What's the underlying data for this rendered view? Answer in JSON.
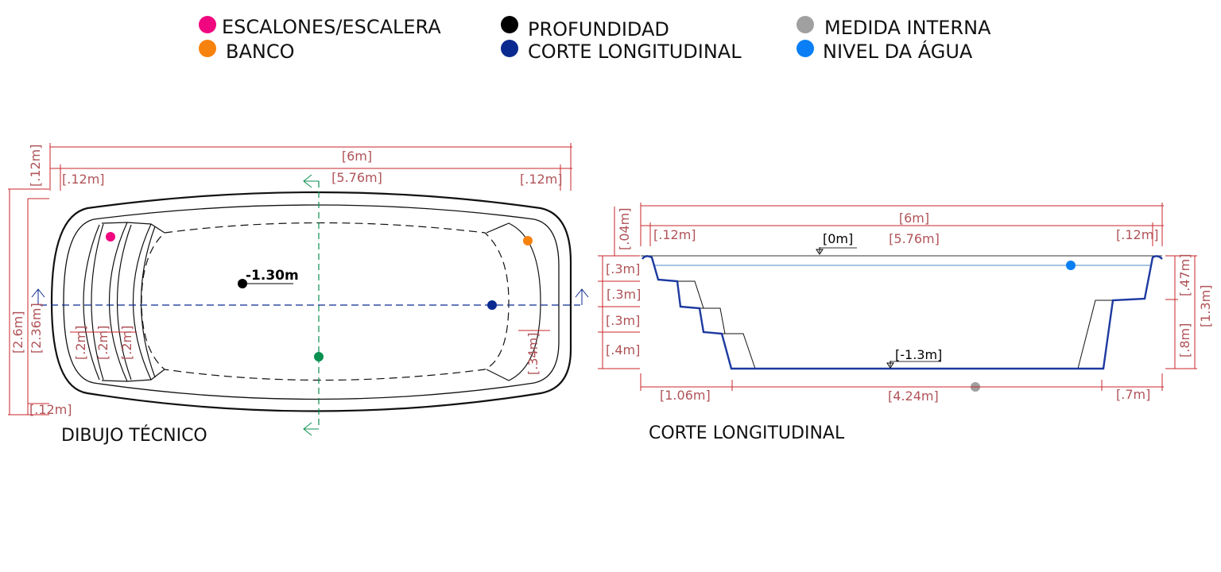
{
  "legend": {
    "items": [
      {
        "label": "ESCALONES/ESCALERA",
        "color": "#f0077f"
      },
      {
        "label": "BANCO",
        "color": "#f7820e"
      },
      {
        "label": "PROFUNDIDAD",
        "color": "#000000"
      },
      {
        "label": "CORTE LONGITUDINAL",
        "color": "#0a2a8f"
      },
      {
        "label": "MEDIDA INTERNA",
        "color": "#a0a0a0"
      },
      {
        "label": "NIVEL DA ÁGUA",
        "color": "#0a7ff5"
      }
    ]
  },
  "plan": {
    "caption": "DIBUJO TÉCNICO",
    "total_length": "[6m]",
    "inner_length": "[5.76m]",
    "wall_left": "[.12m]",
    "wall_right": "[.12m]",
    "wall_top": "[.12m]",
    "wall_bottom": "[.12m]",
    "total_width": "[2.6m]",
    "inner_width": "[2.36m]",
    "step_depths": [
      "[.2m]",
      "[.2m]",
      "[.2m]"
    ],
    "bench_width": "[.34m]",
    "depth": "-1.30m"
  },
  "section": {
    "caption": "CORTE LONGITUDINAL",
    "total_length": "[6m]",
    "inner_length": "[5.76m]",
    "wall_left": "[.12m]",
    "wall_right": "[.12m]",
    "rim": "[.04m]",
    "top_level": "[0m]",
    "bottom_level": "[-1.3m]",
    "step_heights": [
      "[.3m]",
      "[.3m]",
      "[.3m]",
      "[.4m]"
    ],
    "bottom_segments": [
      "[1.06m]",
      "[4.24m]",
      "[.7m]"
    ],
    "bench_height": "[.47m]",
    "bench_to_floor": "[.8m]",
    "total_depth": "[1.3m]"
  }
}
